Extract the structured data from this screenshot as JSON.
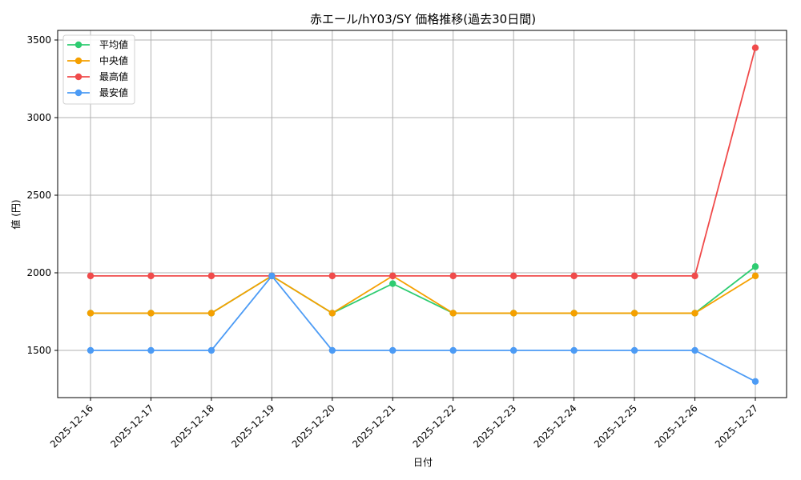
{
  "chart_data": {
    "type": "line",
    "title": "赤エール/hY03/SY 価格推移(過去30日間)",
    "xlabel": "日付",
    "ylabel": "値 (円)",
    "categories": [
      "2025-12-16",
      "2025-12-17",
      "2025-12-18",
      "2025-12-19",
      "2025-12-20",
      "2025-12-21",
      "2025-12-22",
      "2025-12-23",
      "2025-12-24",
      "2025-12-25",
      "2025-12-26",
      "2025-12-27"
    ],
    "series": [
      {
        "name": "平均値",
        "color": "#2ecc71",
        "values": [
          1740,
          1740,
          1740,
          1980,
          1740,
          1930,
          1740,
          1740,
          1740,
          1740,
          1740,
          2040
        ]
      },
      {
        "name": "中央値",
        "color": "#f5a000",
        "values": [
          1740,
          1740,
          1740,
          1980,
          1740,
          1980,
          1740,
          1740,
          1740,
          1740,
          1740,
          1980
        ]
      },
      {
        "name": "最高値",
        "color": "#f04b4b",
        "values": [
          1980,
          1980,
          1980,
          1980,
          1980,
          1980,
          1980,
          1980,
          1980,
          1980,
          1980,
          3450
        ]
      },
      {
        "name": "最安値",
        "color": "#4c9bf5",
        "values": [
          1500,
          1500,
          1500,
          1980,
          1500,
          1500,
          1500,
          1500,
          1500,
          1500,
          1500,
          1300
        ]
      }
    ],
    "yticks": [
      1500,
      2000,
      2500,
      3000,
      3500
    ],
    "ylim": [
      1190,
      3560
    ],
    "grid": true,
    "legend_position": "upper left"
  }
}
